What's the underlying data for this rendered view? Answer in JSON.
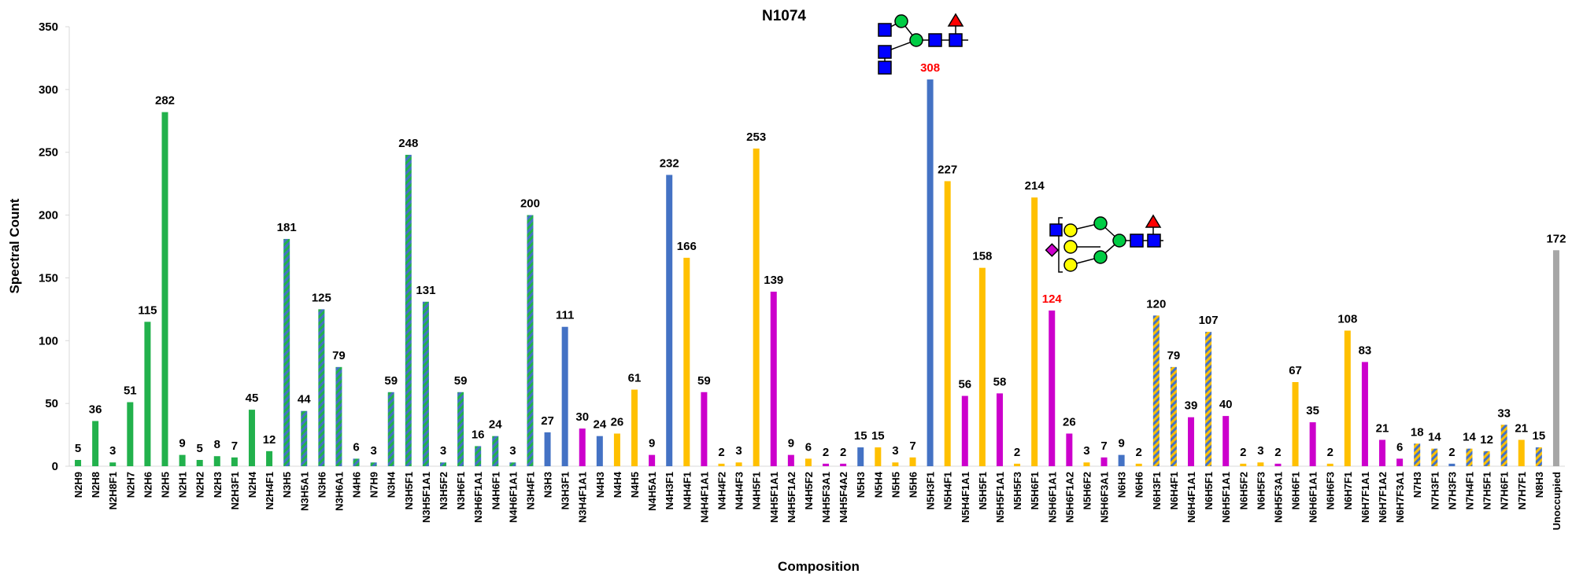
{
  "chart_data": {
    "type": "bar",
    "title": "N1074",
    "x_label": "Composition",
    "y_label": "Spectral Count",
    "categories": [
      "N2H9",
      "N2H8",
      "N2H8F1",
      "N2H7",
      "N2H6",
      "N2H5",
      "N2H1",
      "N2H2",
      "N2H3",
      "N2H3F1",
      "N2H4",
      "N2H4F1",
      "N3H5",
      "N3H5A1",
      "N3H6",
      "N3H6A1",
      "N4H6",
      "N7H9",
      "N3H4",
      "N3H5F1",
      "N3H5F1A1",
      "N3H5F2",
      "N3H6F1",
      "N3H6F1A1",
      "N4H6F1",
      "N4H6F1A1",
      "N3H4F1",
      "N3H3",
      "N3H3F1",
      "N3H4F1A1",
      "N4H3",
      "N4H4",
      "N4H5",
      "N4H5A1",
      "N4H3F1",
      "N4H4F1",
      "N4H4F1A1",
      "N4H4F2",
      "N4H4F3",
      "N4H5F1",
      "N4H5F1A1",
      "N4H5F1A2",
      "N4H5F2",
      "N4H5F3A1",
      "N4H5F4A2",
      "N5H3",
      "N5H4",
      "N5H5",
      "N5H6",
      "N5H3F1",
      "N5H4F1",
      "N5H4F1A1",
      "N5H5F1",
      "N5H5F1A1",
      "N5H5F3",
      "N5H6F1",
      "N5H6F1A1",
      "N5H6F1A2",
      "N5H6F2",
      "N5H6F3A1",
      "N6H3",
      "N6H6",
      "N6H3F1",
      "N6H4F1",
      "N6H4F1A1",
      "N6H5F1",
      "N6H5F1A1",
      "N6H5F2",
      "N6H5F3",
      "N6H5F3A1",
      "N6H6F1",
      "N6H6F1A1",
      "N6H6F3",
      "N6H7F1",
      "N6H7F1A1",
      "N6H7F1A2",
      "N6H7F3A1",
      "N7H3",
      "N7H3F1",
      "N7H3F3",
      "N7H4F1",
      "N7H5F1",
      "N7H6F1",
      "N7H7F1",
      "N8H3",
      "Unoccupied"
    ],
    "values": [
      5,
      36,
      3,
      51,
      115,
      282,
      9,
      5,
      8,
      7,
      45,
      12,
      181,
      44,
      125,
      79,
      6,
      3,
      59,
      248,
      131,
      3,
      59,
      16,
      24,
      3,
      200,
      27,
      111,
      30,
      24,
      26,
      61,
      9,
      232,
      166,
      59,
      2,
      3,
      253,
      139,
      9,
      6,
      2,
      2,
      15,
      15,
      3,
      7,
      308,
      227,
      56,
      158,
      58,
      2,
      214,
      124,
      26,
      3,
      7,
      9,
      2,
      120,
      79,
      39,
      107,
      40,
      2,
      3,
      2,
      67,
      35,
      2,
      108,
      83,
      21,
      6,
      18,
      14,
      2,
      14,
      12,
      33,
      21,
      15,
      172
    ],
    "colors": [
      "#22b14c",
      "#22b14c",
      "#22b14c",
      "#22b14c",
      "#22b14c",
      "#22b14c",
      "#22b14c",
      "#22b14c",
      "#22b14c",
      "#22b14c",
      "#22b14c",
      "#22b14c",
      [
        "#22b14c",
        "#4472c4"
      ],
      [
        "#22b14c",
        "#4472c4"
      ],
      [
        "#22b14c",
        "#4472c4"
      ],
      [
        "#22b14c",
        "#4472c4"
      ],
      [
        "#22b14c",
        "#4472c4"
      ],
      [
        "#22b14c",
        "#4472c4"
      ],
      [
        "#22b14c",
        "#4472c4"
      ],
      [
        "#22b14c",
        "#4472c4"
      ],
      [
        "#22b14c",
        "#4472c4"
      ],
      [
        "#22b14c",
        "#4472c4"
      ],
      [
        "#22b14c",
        "#4472c4"
      ],
      [
        "#22b14c",
        "#4472c4"
      ],
      [
        "#22b14c",
        "#4472c4"
      ],
      [
        "#22b14c",
        "#4472c4"
      ],
      [
        "#22b14c",
        "#4472c4"
      ],
      "#4472c4",
      "#4472c4",
      "#cc00cc",
      "#4472c4",
      "#ffc000",
      "#ffc000",
      "#cc00cc",
      "#4472c4",
      "#ffc000",
      "#cc00cc",
      "#ffc000",
      "#ffc000",
      "#ffc000",
      "#cc00cc",
      "#cc00cc",
      "#ffc000",
      "#cc00cc",
      "#cc00cc",
      "#4472c4",
      "#ffc000",
      "#ffc000",
      "#ffc000",
      "#4472c4",
      "#ffc000",
      "#cc00cc",
      "#ffc000",
      "#cc00cc",
      "#ffc000",
      "#ffc000",
      "#cc00cc",
      "#cc00cc",
      "#ffc000",
      "#cc00cc",
      "#4472c4",
      "#ffc000",
      [
        "#4472c4",
        "#ffc000"
      ],
      [
        "#4472c4",
        "#ffc000"
      ],
      "#cc00cc",
      [
        "#4472c4",
        "#ffc000"
      ],
      "#cc00cc",
      "#ffc000",
      "#ffc000",
      "#cc00cc",
      "#ffc000",
      "#cc00cc",
      "#ffc000",
      "#ffc000",
      "#cc00cc",
      "#cc00cc",
      "#cc00cc",
      [
        "#4472c4",
        "#ffc000"
      ],
      [
        "#4472c4",
        "#ffc000"
      ],
      "#4472c4",
      [
        "#4472c4",
        "#ffc000"
      ],
      [
        "#4472c4",
        "#ffc000"
      ],
      [
        "#4472c4",
        "#ffc000"
      ],
      "#ffc000",
      [
        "#4472c4",
        "#ffc000"
      ],
      "#a6a6a6"
    ],
    "highlight_categories": [
      "N5H3F1",
      "N5H6F1A1"
    ],
    "highlight_color": "#ff0000",
    "ylim": [
      0,
      350
    ],
    "yticks": [
      0,
      50,
      100,
      150,
      200,
      250,
      300,
      350
    ],
    "grid": false
  }
}
